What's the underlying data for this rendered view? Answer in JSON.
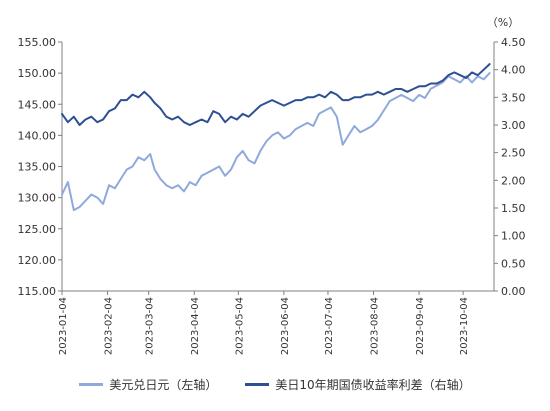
{
  "chart_data": {
    "type": "line",
    "right_unit": "（%）",
    "x_ticks": [
      "2023-01-04",
      "2023-02-04",
      "2023-03-04",
      "2023-04-04",
      "2023-05-04",
      "2023-06-04",
      "2023-07-04",
      "2023-08-04",
      "2023-09-04",
      "2023-10-04"
    ],
    "y_left": {
      "ylim": [
        115,
        155
      ],
      "ticks": [
        "115.00",
        "120.00",
        "125.00",
        "130.00",
        "135.00",
        "140.00",
        "145.00",
        "150.00",
        "155.00"
      ]
    },
    "y_right": {
      "ylim": [
        0,
        4.5
      ],
      "ticks": [
        "0.00",
        "0.50",
        "1.00",
        "1.50",
        "2.00",
        "2.50",
        "3.00",
        "3.50",
        "4.00",
        "4.50"
      ]
    },
    "grid": false,
    "legend_position": "bottom",
    "series": [
      {
        "name": "美元兑日元（左轴）",
        "axis": "left",
        "color": "#8fa9dc",
        "x": [
          "2023-01-04",
          "2023-01-08",
          "2023-01-12",
          "2023-01-16",
          "2023-01-20",
          "2023-01-24",
          "2023-01-28",
          "2023-02-01",
          "2023-02-05",
          "2023-02-09",
          "2023-02-13",
          "2023-02-17",
          "2023-02-21",
          "2023-02-25",
          "2023-03-01",
          "2023-03-05",
          "2023-03-08",
          "2023-03-12",
          "2023-03-16",
          "2023-03-20",
          "2023-03-24",
          "2023-03-28",
          "2023-04-01",
          "2023-04-05",
          "2023-04-09",
          "2023-04-13",
          "2023-04-17",
          "2023-04-21",
          "2023-04-25",
          "2023-04-29",
          "2023-05-03",
          "2023-05-07",
          "2023-05-11",
          "2023-05-15",
          "2023-05-19",
          "2023-05-23",
          "2023-05-27",
          "2023-05-31",
          "2023-06-04",
          "2023-06-08",
          "2023-06-12",
          "2023-06-16",
          "2023-06-20",
          "2023-06-24",
          "2023-06-28",
          "2023-07-02",
          "2023-07-06",
          "2023-07-10",
          "2023-07-14",
          "2023-07-18",
          "2023-07-22",
          "2023-07-26",
          "2023-07-30",
          "2023-08-03",
          "2023-08-07",
          "2023-08-11",
          "2023-08-15",
          "2023-08-19",
          "2023-08-23",
          "2023-08-27",
          "2023-08-31",
          "2023-09-04",
          "2023-09-08",
          "2023-09-12",
          "2023-09-16",
          "2023-09-20",
          "2023-09-24",
          "2023-09-28",
          "2023-10-02",
          "2023-10-06",
          "2023-10-10",
          "2023-10-14",
          "2023-10-18",
          "2023-10-22"
        ],
        "values": [
          130.5,
          132.5,
          128.0,
          128.5,
          129.5,
          130.5,
          130.0,
          129.0,
          132.0,
          131.5,
          133.0,
          134.5,
          135.0,
          136.5,
          136.0,
          137.0,
          134.5,
          133.0,
          132.0,
          131.5,
          132.0,
          131.0,
          132.5,
          132.0,
          133.5,
          134.0,
          134.5,
          135.0,
          133.5,
          134.5,
          136.5,
          137.5,
          136.0,
          135.5,
          137.5,
          139.0,
          140.0,
          140.5,
          139.5,
          140.0,
          141.0,
          141.5,
          142.0,
          141.5,
          143.5,
          144.0,
          144.5,
          143.0,
          138.5,
          140.0,
          141.5,
          140.5,
          141.0,
          141.5,
          142.5,
          144.0,
          145.5,
          146.0,
          146.5,
          146.0,
          145.5,
          146.5,
          146.0,
          147.5,
          148.0,
          148.5,
          149.5,
          149.0,
          148.5,
          149.5,
          148.5,
          149.5,
          149.0,
          150.0
        ]
      },
      {
        "name": "美日10年期国债收益率利差（右轴）",
        "axis": "right",
        "color": "#2e4f91",
        "x": [
          "2023-01-04",
          "2023-01-08",
          "2023-01-12",
          "2023-01-16",
          "2023-01-20",
          "2023-01-24",
          "2023-01-28",
          "2023-02-01",
          "2023-02-05",
          "2023-02-09",
          "2023-02-13",
          "2023-02-17",
          "2023-02-21",
          "2023-02-25",
          "2023-03-01",
          "2023-03-05",
          "2023-03-08",
          "2023-03-12",
          "2023-03-16",
          "2023-03-20",
          "2023-03-24",
          "2023-03-28",
          "2023-04-01",
          "2023-04-05",
          "2023-04-09",
          "2023-04-13",
          "2023-04-17",
          "2023-04-21",
          "2023-04-25",
          "2023-04-29",
          "2023-05-03",
          "2023-05-07",
          "2023-05-11",
          "2023-05-15",
          "2023-05-19",
          "2023-05-23",
          "2023-05-27",
          "2023-05-31",
          "2023-06-04",
          "2023-06-08",
          "2023-06-12",
          "2023-06-16",
          "2023-06-20",
          "2023-06-24",
          "2023-06-28",
          "2023-07-02",
          "2023-07-06",
          "2023-07-10",
          "2023-07-14",
          "2023-07-18",
          "2023-07-22",
          "2023-07-26",
          "2023-07-30",
          "2023-08-03",
          "2023-08-07",
          "2023-08-11",
          "2023-08-15",
          "2023-08-19",
          "2023-08-23",
          "2023-08-27",
          "2023-08-31",
          "2023-09-04",
          "2023-09-08",
          "2023-09-12",
          "2023-09-16",
          "2023-09-20",
          "2023-09-24",
          "2023-09-28",
          "2023-10-02",
          "2023-10-06",
          "2023-10-10",
          "2023-10-14",
          "2023-10-18",
          "2023-10-22"
        ],
        "values": [
          3.2,
          3.05,
          3.15,
          3.0,
          3.1,
          3.15,
          3.05,
          3.1,
          3.25,
          3.3,
          3.45,
          3.45,
          3.55,
          3.5,
          3.6,
          3.5,
          3.4,
          3.3,
          3.15,
          3.1,
          3.15,
          3.05,
          3.0,
          3.05,
          3.1,
          3.05,
          3.25,
          3.2,
          3.05,
          3.15,
          3.1,
          3.2,
          3.15,
          3.25,
          3.35,
          3.4,
          3.45,
          3.4,
          3.35,
          3.4,
          3.45,
          3.45,
          3.5,
          3.5,
          3.55,
          3.5,
          3.6,
          3.55,
          3.45,
          3.45,
          3.5,
          3.5,
          3.55,
          3.55,
          3.6,
          3.55,
          3.6,
          3.65,
          3.65,
          3.6,
          3.65,
          3.7,
          3.7,
          3.75,
          3.75,
          3.8,
          3.9,
          3.95,
          3.9,
          3.85,
          3.95,
          3.9,
          4.0,
          4.1
        ]
      }
    ]
  }
}
